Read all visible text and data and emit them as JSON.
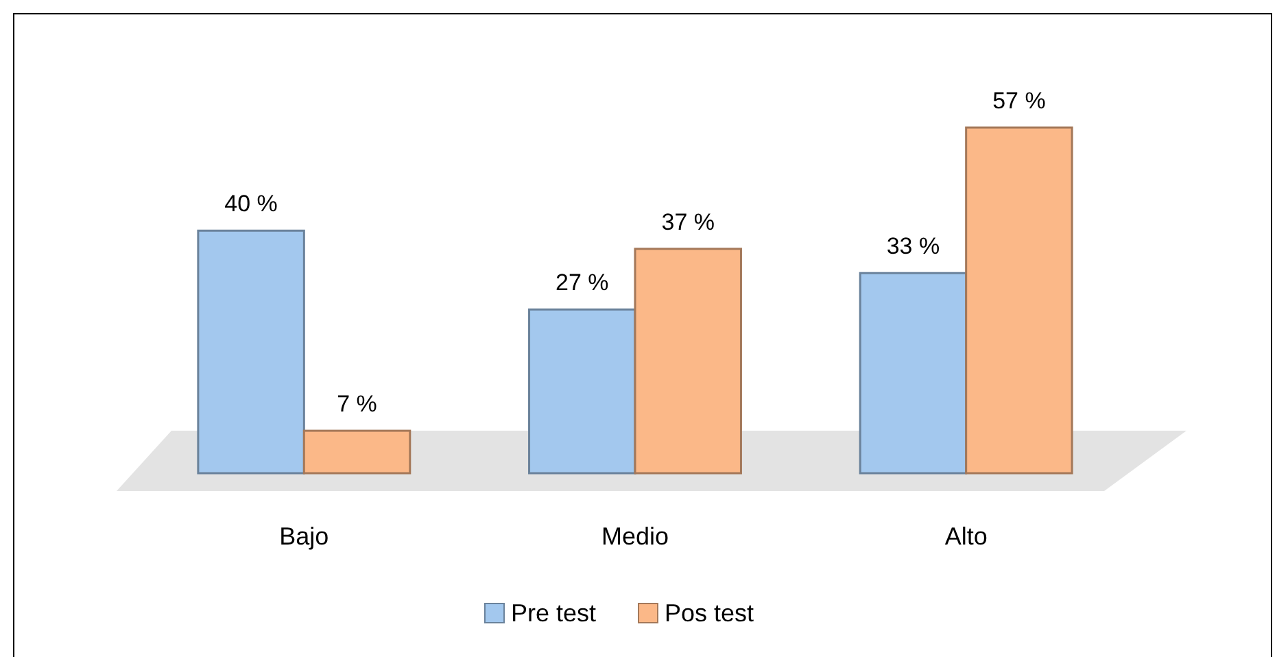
{
  "chart_data": {
    "type": "bar",
    "categories": [
      "Bajo",
      "Medio",
      "Alto"
    ],
    "series": [
      {
        "name": "Pre test",
        "color": "#a3c8ee",
        "values": [
          40,
          27,
          33
        ],
        "value_labels": [
          "40 %",
          "27 %",
          "33 %"
        ]
      },
      {
        "name": "Pos test",
        "color": "#fbb888",
        "values": [
          7,
          37,
          57
        ],
        "value_labels": [
          "7 %",
          "37 %",
          "57 %"
        ]
      }
    ],
    "legend": "bottom",
    "grid": false
  }
}
